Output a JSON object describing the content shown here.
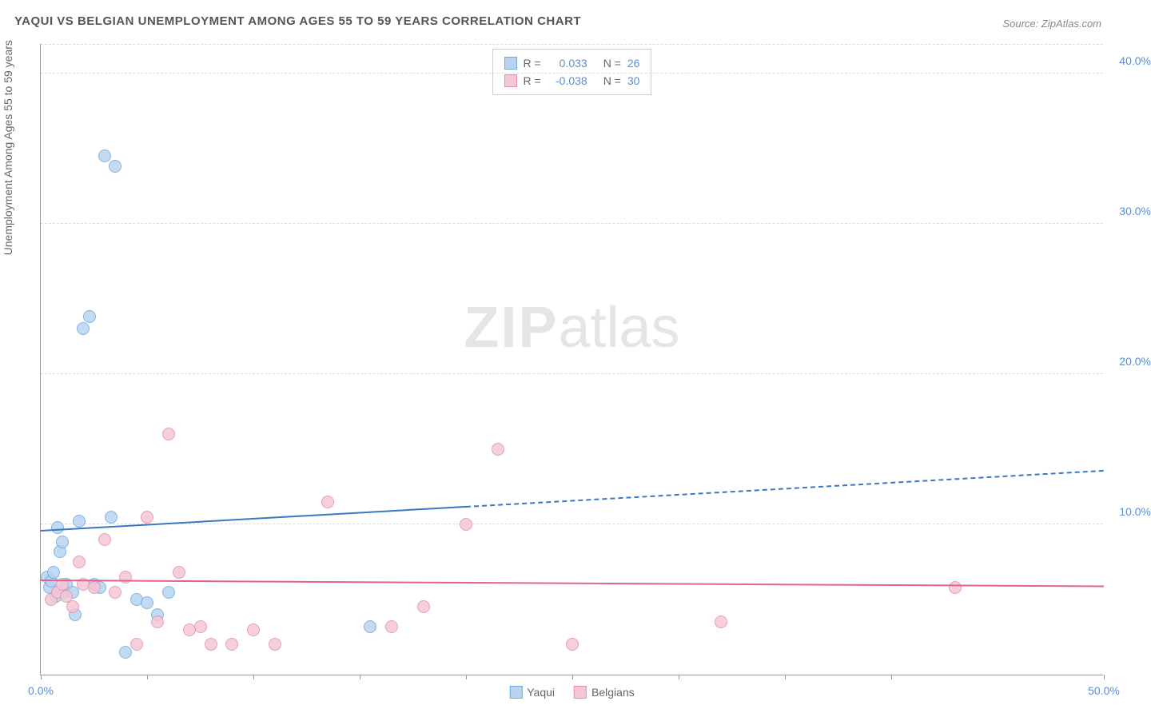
{
  "title": "YAQUI VS BELGIAN UNEMPLOYMENT AMONG AGES 55 TO 59 YEARS CORRELATION CHART",
  "source": "Source: ZipAtlas.com",
  "y_label": "Unemployment Among Ages 55 to 59 years",
  "watermark_zip": "ZIP",
  "watermark_atlas": "atlas",
  "chart": {
    "type": "scatter",
    "xlim": [
      0,
      50
    ],
    "ylim": [
      0,
      42
    ],
    "x_ticks": [
      0,
      5,
      10,
      15,
      20,
      25,
      30,
      35,
      40,
      50
    ],
    "x_tick_labels": {
      "0": "0.0%",
      "50": "50.0%"
    },
    "y_ticks": [
      10,
      20,
      30,
      40
    ],
    "y_tick_labels": {
      "10": "10.0%",
      "20": "20.0%",
      "30": "30.0%",
      "40": "40.0%"
    },
    "grid_color": "#dddddd",
    "background_color": "#ffffff",
    "series": [
      {
        "name": "Yaqui",
        "fill": "#b8d4f0",
        "stroke": "#6fa8dc",
        "r_value": "0.033",
        "n_value": "26",
        "trend": {
          "x1": 0,
          "y1": 9.5,
          "x2": 50,
          "y2": 13.5,
          "solid_until_x": 20,
          "color": "#3b78c4"
        },
        "points": [
          [
            0.3,
            6.5
          ],
          [
            0.4,
            5.8
          ],
          [
            0.5,
            6.2
          ],
          [
            0.6,
            6.8
          ],
          [
            0.8,
            9.8
          ],
          [
            0.9,
            8.2
          ],
          [
            1.0,
            8.8
          ],
          [
            1.1,
            5.5
          ],
          [
            1.2,
            6.0
          ],
          [
            1.5,
            5.5
          ],
          [
            1.6,
            4.0
          ],
          [
            1.8,
            10.2
          ],
          [
            2.0,
            23.0
          ],
          [
            2.3,
            23.8
          ],
          [
            2.5,
            6.0
          ],
          [
            2.8,
            5.8
          ],
          [
            3.0,
            34.5
          ],
          [
            3.3,
            10.5
          ],
          [
            3.5,
            33.8
          ],
          [
            4.0,
            1.5
          ],
          [
            4.5,
            5.0
          ],
          [
            5.0,
            4.8
          ],
          [
            5.5,
            4.0
          ],
          [
            6.0,
            5.5
          ],
          [
            15.5,
            3.2
          ],
          [
            0.7,
            5.2
          ]
        ]
      },
      {
        "name": "Belgians",
        "fill": "#f5c6d6",
        "stroke": "#e091ac",
        "r_value": "-0.038",
        "n_value": "30",
        "trend": {
          "x1": 0,
          "y1": 6.2,
          "x2": 50,
          "y2": 5.8,
          "solid_until_x": 50,
          "color": "#e06290"
        },
        "points": [
          [
            0.5,
            5.0
          ],
          [
            0.8,
            5.5
          ],
          [
            1.0,
            6.0
          ],
          [
            1.2,
            5.2
          ],
          [
            1.5,
            4.5
          ],
          [
            1.8,
            7.5
          ],
          [
            2.0,
            6.0
          ],
          [
            2.5,
            5.8
          ],
          [
            3.0,
            9.0
          ],
          [
            3.5,
            5.5
          ],
          [
            4.0,
            6.5
          ],
          [
            4.5,
            2.0
          ],
          [
            5.0,
            10.5
          ],
          [
            5.5,
            3.5
          ],
          [
            6.0,
            16.0
          ],
          [
            6.5,
            6.8
          ],
          [
            7.0,
            3.0
          ],
          [
            7.5,
            3.2
          ],
          [
            8.0,
            2.0
          ],
          [
            9.0,
            2.0
          ],
          [
            10.0,
            3.0
          ],
          [
            11.0,
            2.0
          ],
          [
            13.5,
            11.5
          ],
          [
            16.5,
            3.2
          ],
          [
            18.0,
            4.5
          ],
          [
            20.0,
            10.0
          ],
          [
            21.5,
            15.0
          ],
          [
            25.0,
            2.0
          ],
          [
            32.0,
            3.5
          ],
          [
            43.0,
            5.8
          ]
        ]
      }
    ]
  },
  "legend_bottom": [
    {
      "label": "Yaqui",
      "fill": "#b8d4f0",
      "stroke": "#6fa8dc"
    },
    {
      "label": "Belgians",
      "fill": "#f5c6d6",
      "stroke": "#e091ac"
    }
  ]
}
